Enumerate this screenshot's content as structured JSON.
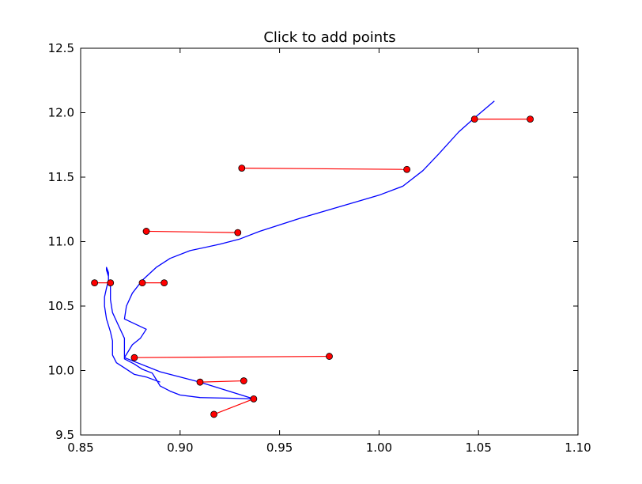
{
  "chart_data": {
    "type": "line",
    "title": "Click to add points",
    "xlabel": "",
    "ylabel": "",
    "xlim": [
      0.85,
      1.1
    ],
    "ylim": [
      9.5,
      12.5
    ],
    "x_ticks": [
      0.85,
      0.9,
      0.95,
      1.0,
      1.05,
      1.1
    ],
    "x_tick_labels": [
      "0.85",
      "0.90",
      "0.95",
      "1.00",
      "1.05",
      "1.10"
    ],
    "y_ticks": [
      9.5,
      10.0,
      10.5,
      11.0,
      11.5,
      12.0,
      12.5
    ],
    "y_tick_labels": [
      "9.5",
      "10.0",
      "10.5",
      "11.0",
      "11.5",
      "12.0",
      "12.5"
    ],
    "grid": false,
    "curve": {
      "color": "#0000ff",
      "points": [
        [
          0.89,
          9.91
        ],
        [
          0.883,
          9.95
        ],
        [
          0.877,
          9.97
        ],
        [
          0.872,
          10.02
        ],
        [
          0.868,
          10.06
        ],
        [
          0.866,
          10.12
        ],
        [
          0.866,
          10.22
        ],
        [
          0.866,
          10.23
        ],
        [
          0.865,
          10.3
        ],
        [
          0.863,
          10.4
        ],
        [
          0.862,
          10.5
        ],
        [
          0.862,
          10.57
        ],
        [
          0.863,
          10.64
        ],
        [
          0.864,
          10.7
        ],
        [
          0.864,
          10.76
        ],
        [
          0.863,
          10.8
        ],
        [
          0.863,
          10.78
        ],
        [
          0.864,
          10.73
        ],
        [
          0.864,
          10.69
        ],
        [
          0.865,
          10.65
        ],
        [
          0.865,
          10.55
        ],
        [
          0.866,
          10.45
        ],
        [
          0.869,
          10.35
        ],
        [
          0.872,
          10.25
        ],
        [
          0.872,
          10.15
        ],
        [
          0.872,
          10.09
        ],
        [
          0.877,
          10.05
        ],
        [
          0.881,
          10.01
        ],
        [
          0.886,
          9.98
        ],
        [
          0.888,
          9.93
        ],
        [
          0.89,
          9.88
        ],
        [
          0.895,
          9.84
        ],
        [
          0.9,
          9.81
        ],
        [
          0.91,
          9.79
        ],
        [
          0.925,
          9.785
        ],
        [
          0.937,
          9.78
        ],
        [
          0.91,
          9.91
        ],
        [
          0.89,
          9.99
        ],
        [
          0.872,
          10.1
        ],
        [
          0.876,
          10.2
        ],
        [
          0.88,
          10.25
        ],
        [
          0.883,
          10.32
        ],
        [
          0.872,
          10.4
        ],
        [
          0.873,
          10.5
        ],
        [
          0.876,
          10.6
        ],
        [
          0.881,
          10.7
        ],
        [
          0.888,
          10.8
        ],
        [
          0.895,
          10.87
        ],
        [
          0.905,
          10.93
        ],
        [
          0.92,
          10.98
        ],
        [
          0.93,
          11.02
        ],
        [
          0.94,
          11.08
        ],
        [
          0.96,
          11.18
        ],
        [
          0.98,
          11.27
        ],
        [
          1.0,
          11.36
        ],
        [
          1.012,
          11.43
        ],
        [
          1.022,
          11.55
        ],
        [
          1.03,
          11.68
        ],
        [
          1.04,
          11.85
        ],
        [
          1.048,
          11.96
        ],
        [
          1.058,
          12.09
        ]
      ]
    },
    "segments": [
      {
        "x": [
          0.917,
          0.937
        ],
        "y": [
          9.66,
          9.78
        ]
      },
      {
        "x": [
          0.91,
          0.932
        ],
        "y": [
          9.91,
          9.92
        ]
      },
      {
        "x": [
          0.877,
          0.975
        ],
        "y": [
          10.1,
          10.11
        ]
      },
      {
        "x": [
          0.857,
          0.865
        ],
        "y": [
          10.68,
          10.68
        ]
      },
      {
        "x": [
          0.881,
          0.892
        ],
        "y": [
          10.68,
          10.68
        ]
      },
      {
        "x": [
          0.883,
          0.929
        ],
        "y": [
          11.08,
          11.07
        ]
      },
      {
        "x": [
          0.931,
          1.014
        ],
        "y": [
          11.57,
          11.56
        ]
      },
      {
        "x": [
          1.048,
          1.076
        ],
        "y": [
          11.95,
          11.95
        ]
      }
    ],
    "segment_color": "#ff0000",
    "marker_color": "#ff0000"
  }
}
